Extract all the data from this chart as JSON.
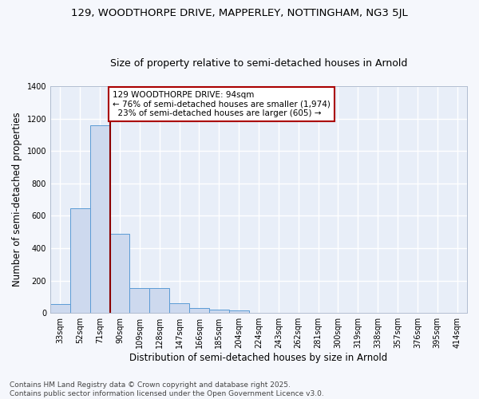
{
  "title": "129, WOODTHORPE DRIVE, MAPPERLEY, NOTTINGHAM, NG3 5JL",
  "subtitle": "Size of property relative to semi-detached houses in Arnold",
  "xlabel": "Distribution of semi-detached houses by size in Arnold",
  "ylabel": "Number of semi-detached properties",
  "bar_color": "#cdd9ee",
  "bar_edge_color": "#5b9bd5",
  "background_color": "#e8eef8",
  "grid_color": "#ffffff",
  "fig_bg_color": "#f5f7fc",
  "categories": [
    "33sqm",
    "52sqm",
    "71sqm",
    "90sqm",
    "109sqm",
    "128sqm",
    "147sqm",
    "166sqm",
    "185sqm",
    "204sqm",
    "224sqm",
    "243sqm",
    "262sqm",
    "281sqm",
    "300sqm",
    "319sqm",
    "338sqm",
    "357sqm",
    "376sqm",
    "395sqm",
    "414sqm"
  ],
  "values": [
    55,
    645,
    1160,
    490,
    155,
    155,
    60,
    30,
    20,
    15,
    0,
    0,
    0,
    0,
    0,
    0,
    0,
    0,
    0,
    0,
    0
  ],
  "ylim": [
    0,
    1400
  ],
  "yticks": [
    0,
    200,
    400,
    600,
    800,
    1000,
    1200,
    1400
  ],
  "property_line_bin": 3,
  "property_size": "94sqm",
  "pct_smaller": 76,
  "n_smaller": 1974,
  "pct_larger": 23,
  "n_larger": 605,
  "annotation_box_color": "#ffffff",
  "annotation_box_edge": "#aa0000",
  "red_line_color": "#8b0000",
  "footer_text": "Contains HM Land Registry data © Crown copyright and database right 2025.\nContains public sector information licensed under the Open Government Licence v3.0.",
  "title_fontsize": 9.5,
  "subtitle_fontsize": 9,
  "annotation_fontsize": 7.5,
  "axis_label_fontsize": 8.5,
  "tick_fontsize": 7,
  "footer_fontsize": 6.5
}
